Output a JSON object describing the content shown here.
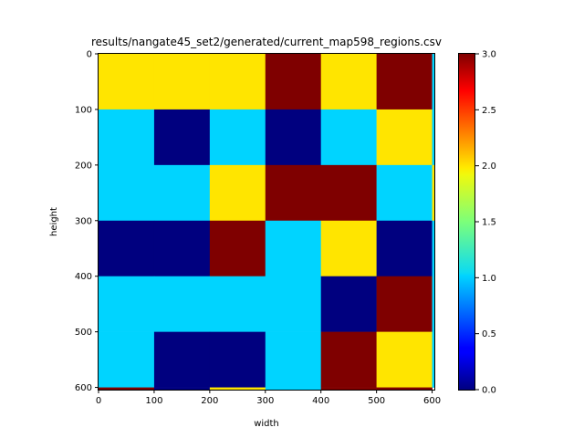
{
  "chart_data": {
    "type": "heatmap",
    "title": "results/nangate45_set2/generated/current_map598_regions.csv",
    "xlabel": "width",
    "ylabel": "height",
    "xlim": [
      0,
      604
    ],
    "ylim": [
      0,
      604
    ],
    "y_inverted": true,
    "colormap": "jet",
    "colorbar": {
      "vmin": 0.0,
      "vmax": 3.0,
      "ticks": [
        "0.0",
        "0.5",
        "1.0",
        "1.5",
        "2.0",
        "2.5",
        "3.0"
      ]
    },
    "x_ticks": [
      "0",
      "100",
      "200",
      "300",
      "400",
      "500",
      "600"
    ],
    "y_ticks": [
      "0",
      "100",
      "200",
      "300",
      "400",
      "500",
      "600"
    ],
    "cell_size": 100,
    "grid": [
      [
        2,
        2,
        2,
        3,
        2,
        3
      ],
      [
        1,
        0,
        1,
        0,
        1,
        2
      ],
      [
        1,
        1,
        2,
        3,
        3,
        1
      ],
      [
        0,
        0,
        3,
        1,
        2,
        0
      ],
      [
        1,
        1,
        1,
        1,
        0,
        3
      ],
      [
        1,
        0,
        0,
        1,
        3,
        2
      ]
    ],
    "edge_strips": {
      "right_column": [
        1,
        1,
        2,
        1,
        1,
        1
      ],
      "bottom_row": [
        3,
        0,
        2,
        1,
        3,
        3
      ]
    }
  }
}
